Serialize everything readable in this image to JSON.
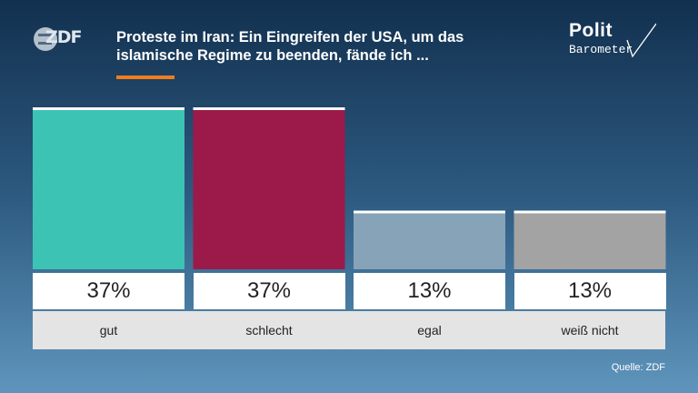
{
  "header": {
    "broadcaster_logo": "ZDF",
    "title": "Proteste im Iran: Ein Eingreifen der USA, um das islamische Regime zu beenden, fände ich ...",
    "brand_top": "Polit",
    "brand_bottom": "Barometer"
  },
  "colors": {
    "accent": "#f07d1c",
    "gut": "#3cc3b4",
    "schlecht": "#9b1a4a",
    "egal": "#87a3b7",
    "weiss_nicht": "#a3a3a3"
  },
  "chart_data": {
    "type": "bar",
    "categories": [
      "gut",
      "schlecht",
      "egal",
      "weiß nicht"
    ],
    "values": [
      37,
      37,
      13,
      13
    ],
    "value_labels": [
      "37%",
      "37%",
      "13%",
      "13%"
    ],
    "colors": [
      "#3cc3b4",
      "#9b1a4a",
      "#87a3b7",
      "#a3a3a3"
    ],
    "ylim": [
      0,
      37
    ],
    "grid": false,
    "title": "Proteste im Iran: Ein Eingreifen der USA, um das islamische Regime zu beenden, fände ich ..."
  },
  "footer": {
    "source": "Quelle: ZDF"
  }
}
